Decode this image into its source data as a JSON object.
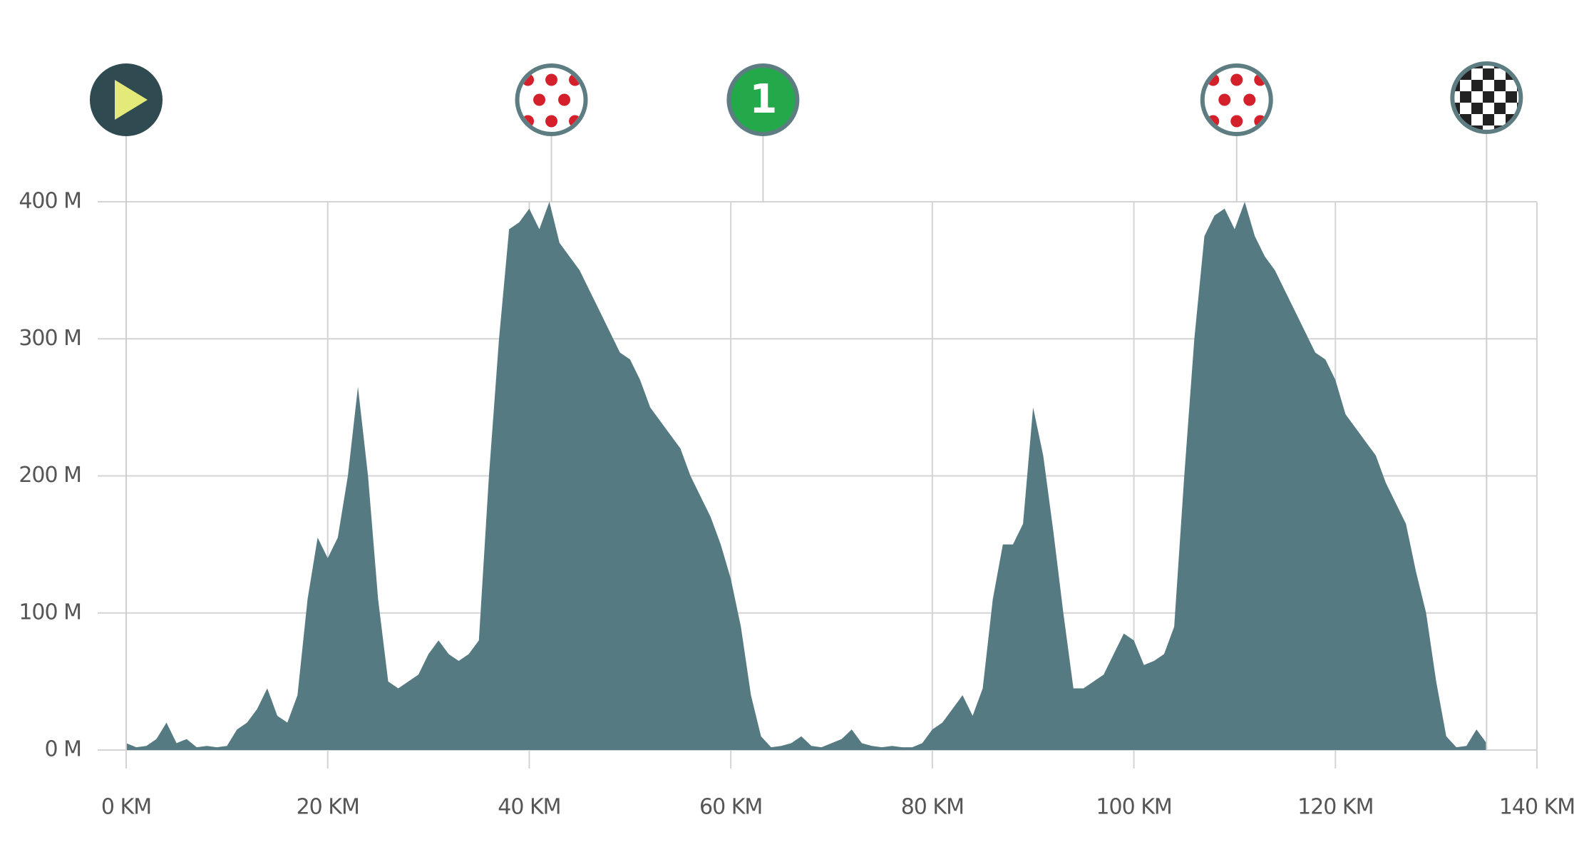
{
  "chart_data": {
    "type": "area",
    "x": [
      0,
      1,
      2,
      3,
      4,
      5,
      6,
      7,
      8,
      9,
      10,
      11,
      12,
      13,
      14,
      15,
      16,
      17,
      18,
      19,
      20,
      21,
      22,
      23,
      24,
      25,
      26,
      27,
      28,
      29,
      30,
      31,
      32,
      33,
      34,
      35,
      36,
      37,
      38,
      39,
      40,
      41,
      42,
      43,
      44,
      45,
      46,
      47,
      48,
      49,
      50,
      51,
      52,
      53,
      54,
      55,
      56,
      57,
      58,
      59,
      60,
      61,
      62,
      63,
      64,
      65,
      66,
      67,
      68,
      69,
      70,
      71,
      72,
      73,
      74,
      75,
      76,
      77,
      78,
      79,
      80,
      81,
      82,
      83,
      84,
      85,
      86,
      87,
      88,
      89,
      90,
      91,
      92,
      93,
      94,
      95,
      96,
      97,
      98,
      99,
      100,
      101,
      102,
      103,
      104,
      105,
      106,
      107,
      108,
      109,
      110,
      111,
      112,
      113,
      114,
      115,
      116,
      117,
      118,
      119,
      120,
      121,
      122,
      123,
      124,
      125,
      126,
      127,
      128,
      129,
      130,
      131,
      132,
      133,
      134,
      135
    ],
    "series": [
      {
        "color": "#567a82",
        "values": [
          5,
          2,
          3,
          8,
          20,
          5,
          8,
          2,
          3,
          2,
          3,
          15,
          20,
          30,
          45,
          25,
          20,
          40,
          110,
          155,
          140,
          155,
          200,
          265,
          200,
          110,
          50,
          45,
          50,
          55,
          70,
          80,
          70,
          65,
          70,
          80,
          200,
          300,
          380,
          385,
          395,
          380,
          400,
          370,
          360,
          350,
          335,
          320,
          305,
          290,
          285,
          270,
          250,
          240,
          230,
          220,
          200,
          185,
          170,
          150,
          125,
          90,
          40,
          10,
          2,
          3,
          5,
          10,
          3,
          2,
          5,
          8,
          15,
          5,
          3,
          2,
          3,
          2,
          2,
          5,
          15,
          20,
          30,
          40,
          25,
          45,
          110,
          150,
          150,
          165,
          250,
          215,
          160,
          100,
          45,
          45,
          50,
          55,
          70,
          85,
          80,
          62,
          65,
          70,
          90,
          200,
          300,
          375,
          390,
          395,
          380,
          400,
          375,
          360,
          350,
          335,
          320,
          305,
          290,
          285,
          270,
          245,
          235,
          225,
          215,
          195,
          180,
          165,
          130,
          100,
          50,
          10,
          2,
          3,
          15,
          5
        ]
      }
    ],
    "xlim": [
      0,
      140
    ],
    "xticks": [
      {
        "value": 0,
        "label": "0 KM"
      },
      {
        "value": 20,
        "label": "20 KM"
      },
      {
        "value": 40,
        "label": "40 KM"
      },
      {
        "value": 60,
        "label": "60 KM"
      },
      {
        "value": 80,
        "label": "80 KM"
      },
      {
        "value": 100,
        "label": "100 KM"
      },
      {
        "value": 120,
        "label": "120 KM"
      },
      {
        "value": 140,
        "label": "140 KM"
      }
    ],
    "ylim": [
      0,
      400
    ],
    "yticks": [
      {
        "value": 0,
        "label": "0 M"
      },
      {
        "value": 100,
        "label": "100 M"
      },
      {
        "value": 200,
        "label": "200 M"
      },
      {
        "value": 300,
        "label": "300 M"
      },
      {
        "value": 400,
        "label": "400 M"
      }
    ],
    "grid": true,
    "markers": [
      {
        "x": 0,
        "icon": "start"
      },
      {
        "x": 42.2,
        "icon": "kom"
      },
      {
        "x": 63.2,
        "icon": "sprint",
        "label": "1"
      },
      {
        "x": 110.2,
        "icon": "kom"
      },
      {
        "x": 135,
        "icon": "finish"
      }
    ]
  }
}
